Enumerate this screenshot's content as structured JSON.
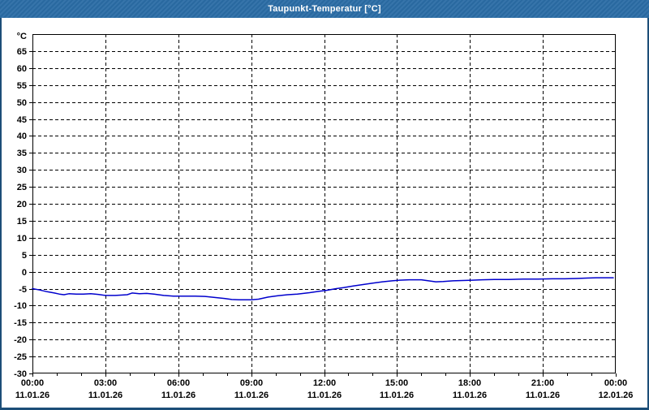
{
  "window": {
    "title": "Taupunkt-Temperatur [°C]"
  },
  "colors": {
    "titlebar_bg": "#2b6da6",
    "titlebar_text": "#ffffff",
    "window_border": "#1c4e78",
    "content_bg": "#ffffff",
    "plot_bg": "#ffffff",
    "frame": "#000000",
    "grid": "#000000",
    "tick_label": "#000000",
    "series": "#0000cd"
  },
  "chart_data": {
    "type": "line",
    "title": "Taupunkt-Temperatur [°C]",
    "ylabel": "°C",
    "xlabel": "",
    "ylim": [
      -30,
      70
    ],
    "xlim_hours": [
      0,
      24
    ],
    "grid": "dashed",
    "legend": "none",
    "y_ticks": [
      -30,
      -25,
      -20,
      -15,
      -10,
      -5,
      0,
      5,
      10,
      15,
      20,
      25,
      30,
      35,
      40,
      45,
      50,
      55,
      60,
      65
    ],
    "x_major_ticks": [
      {
        "hour": 0,
        "time": "00:00",
        "date": "11.01.26"
      },
      {
        "hour": 3,
        "time": "03:00",
        "date": "11.01.26"
      },
      {
        "hour": 6,
        "time": "06:00",
        "date": "11.01.26"
      },
      {
        "hour": 9,
        "time": "09:00",
        "date": "11.01.26"
      },
      {
        "hour": 12,
        "time": "12:00",
        "date": "11.01.26"
      },
      {
        "hour": 15,
        "time": "15:00",
        "date": "11.01.26"
      },
      {
        "hour": 18,
        "time": "18:00",
        "date": "11.01.26"
      },
      {
        "hour": 21,
        "time": "21:00",
        "date": "11.01.26"
      },
      {
        "hour": 24,
        "time": "00:00",
        "date": "12.01.26"
      }
    ],
    "x_minor_tick_every_hours": 1,
    "series": [
      {
        "name": "Taupunkt-Temperatur",
        "color": "#0000cd",
        "points_hour_value": [
          [
            0.0,
            -5.0
          ],
          [
            0.3,
            -5.4
          ],
          [
            0.6,
            -5.9
          ],
          [
            0.9,
            -6.3
          ],
          [
            1.1,
            -6.6
          ],
          [
            1.3,
            -6.8
          ],
          [
            1.5,
            -6.5
          ],
          [
            1.8,
            -6.6
          ],
          [
            2.1,
            -6.6
          ],
          [
            2.4,
            -6.5
          ],
          [
            2.7,
            -6.7
          ],
          [
            3.0,
            -7.0
          ],
          [
            3.4,
            -7.0
          ],
          [
            3.7,
            -6.9
          ],
          [
            3.9,
            -6.8
          ],
          [
            4.1,
            -6.3
          ],
          [
            4.4,
            -6.5
          ],
          [
            4.7,
            -6.4
          ],
          [
            5.0,
            -6.6
          ],
          [
            5.4,
            -7.0
          ],
          [
            5.8,
            -7.2
          ],
          [
            6.3,
            -7.2
          ],
          [
            6.7,
            -7.2
          ],
          [
            7.1,
            -7.3
          ],
          [
            7.5,
            -7.6
          ],
          [
            7.9,
            -7.9
          ],
          [
            8.2,
            -8.2
          ],
          [
            8.5,
            -8.3
          ],
          [
            9.0,
            -8.3
          ],
          [
            9.3,
            -8.1
          ],
          [
            9.7,
            -7.5
          ],
          [
            10.1,
            -7.1
          ],
          [
            10.5,
            -6.8
          ],
          [
            10.9,
            -6.6
          ],
          [
            11.4,
            -6.2
          ],
          [
            11.8,
            -5.8
          ],
          [
            12.1,
            -5.5
          ],
          [
            12.5,
            -5.0
          ],
          [
            12.8,
            -4.7
          ],
          [
            13.2,
            -4.2
          ],
          [
            13.6,
            -3.8
          ],
          [
            14.0,
            -3.4
          ],
          [
            14.4,
            -3.0
          ],
          [
            14.8,
            -2.7
          ],
          [
            15.1,
            -2.5
          ],
          [
            15.5,
            -2.4
          ],
          [
            16.0,
            -2.4
          ],
          [
            16.3,
            -2.7
          ],
          [
            16.6,
            -3.0
          ],
          [
            16.9,
            -2.9
          ],
          [
            17.3,
            -2.7
          ],
          [
            17.7,
            -2.6
          ],
          [
            18.1,
            -2.5
          ],
          [
            18.5,
            -2.4
          ],
          [
            19.0,
            -2.3
          ],
          [
            19.6,
            -2.3
          ],
          [
            20.2,
            -2.2
          ],
          [
            20.8,
            -2.2
          ],
          [
            21.4,
            -2.1
          ],
          [
            21.9,
            -2.1
          ],
          [
            22.4,
            -2.0
          ],
          [
            22.8,
            -1.9
          ],
          [
            23.2,
            -1.8
          ],
          [
            23.5,
            -1.8
          ],
          [
            23.9,
            -1.8
          ]
        ]
      }
    ]
  }
}
